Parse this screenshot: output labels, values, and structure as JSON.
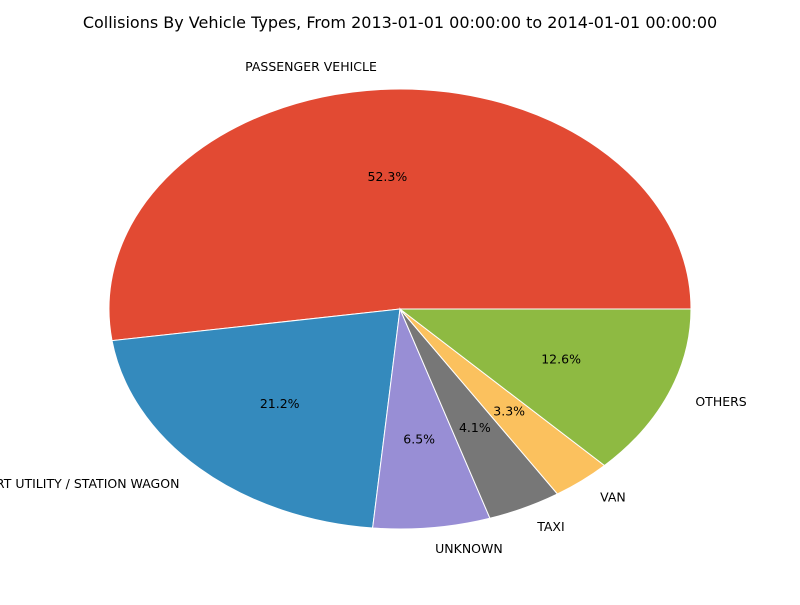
{
  "chart_data": {
    "type": "pie",
    "title": "Collisions By Vehicle Types, From 2013-01-01 00:00:00 to 2014-01-01 00:00:00",
    "categories": [
      "PASSENGER VEHICLE",
      "SPORT UTILITY / STATION WAGON",
      "UNKNOWN",
      "TAXI",
      "VAN",
      "OTHERS"
    ],
    "values": [
      52.3,
      21.2,
      6.5,
      4.1,
      3.3,
      12.6
    ],
    "percent_labels": [
      "52.3%",
      "21.2%",
      "6.5%",
      "4.1%",
      "3.3%",
      "12.6%"
    ],
    "colors": [
      "#E24A33",
      "#348ABD",
      "#988ED5",
      "#777777",
      "#FBC15E",
      "#8EBA42"
    ],
    "start_angle_deg": 0,
    "direction": "counterclockwise",
    "legend": "none"
  }
}
